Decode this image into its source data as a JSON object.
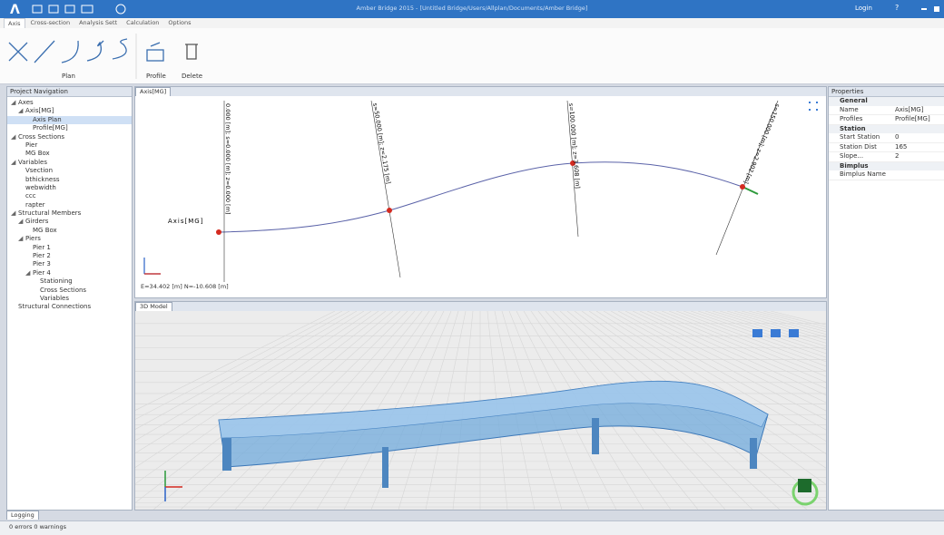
{
  "title_bar": {
    "title": "Amber Bridge 2015 - [Untitled Bridge/Users/Allplan/Documents/Amber Bridge]",
    "user": "Login",
    "help": "?"
  },
  "ribbon": {
    "tabs": [
      "Axis",
      "Cross-section",
      "Analysis Sett",
      "Calculation",
      "Options"
    ],
    "plan_group": "Plan",
    "profile_button": "Profile",
    "delete_button": "Delete"
  },
  "navigation": {
    "title": "Project Navigation",
    "tree": [
      {
        "label": "Axes",
        "children": [
          {
            "label": "Axis[MG]",
            "children": [
              {
                "label": "Axis Plan"
              },
              {
                "label": "Profile[MG]"
              }
            ]
          }
        ]
      },
      {
        "label": "Cross Sections",
        "children": [
          {
            "label": "Pier"
          },
          {
            "label": "MG Box"
          }
        ]
      },
      {
        "label": "Variables",
        "children": [
          {
            "label": "Vsection"
          },
          {
            "label": "bthickness"
          },
          {
            "label": "webwidth"
          },
          {
            "label": "ccc"
          },
          {
            "label": "rapter"
          }
        ]
      },
      {
        "label": "Structural Members",
        "children": [
          {
            "label": "Girders",
            "children": [
              {
                "label": "MG Box"
              }
            ]
          },
          {
            "label": "Piers",
            "children": [
              {
                "label": "Pier 1"
              },
              {
                "label": "Pier 2"
              },
              {
                "label": "Pier 3"
              },
              {
                "label": "Pier 4",
                "children": [
                  {
                    "label": "Stationing"
                  },
                  {
                    "label": "Cross Sections"
                  },
                  {
                    "label": "Variables"
                  }
                ]
              }
            ]
          }
        ]
      },
      {
        "label": "Structural Connections"
      }
    ]
  },
  "plan_view": {
    "tab": "Axis[MG]",
    "axis_label": "Axis[MG]",
    "stations": [
      "0.000 [m]; s=0.000 [m]; z=0.000 [m]",
      "s=50.000 [m]; z=2.175 [m]",
      "s=100.000 [m]; z=3.608 [m]",
      "s=150.000 [m]; z=2.902 [m]"
    ],
    "coordinates": "E=34.402 [m] N=-10.608 [m]"
  },
  "model_view": {
    "tab": "3D Model"
  },
  "properties": {
    "title": "Properties",
    "sections": [
      {
        "name": "General",
        "rows": [
          [
            "Name",
            "Axis[MG]"
          ],
          [
            "Profiles",
            "Profile[MG]"
          ]
        ]
      },
      {
        "name": "Station",
        "rows": [
          [
            "Start Station",
            "0"
          ],
          [
            "Station Dist",
            "165"
          ],
          [
            "Slope...",
            "2"
          ]
        ]
      },
      {
        "name": "Bimplus",
        "rows": [
          [
            "Bimplus Name",
            ""
          ]
        ]
      }
    ]
  },
  "status": {
    "tab": "Logging",
    "message": "0 errors 0 warnings"
  }
}
